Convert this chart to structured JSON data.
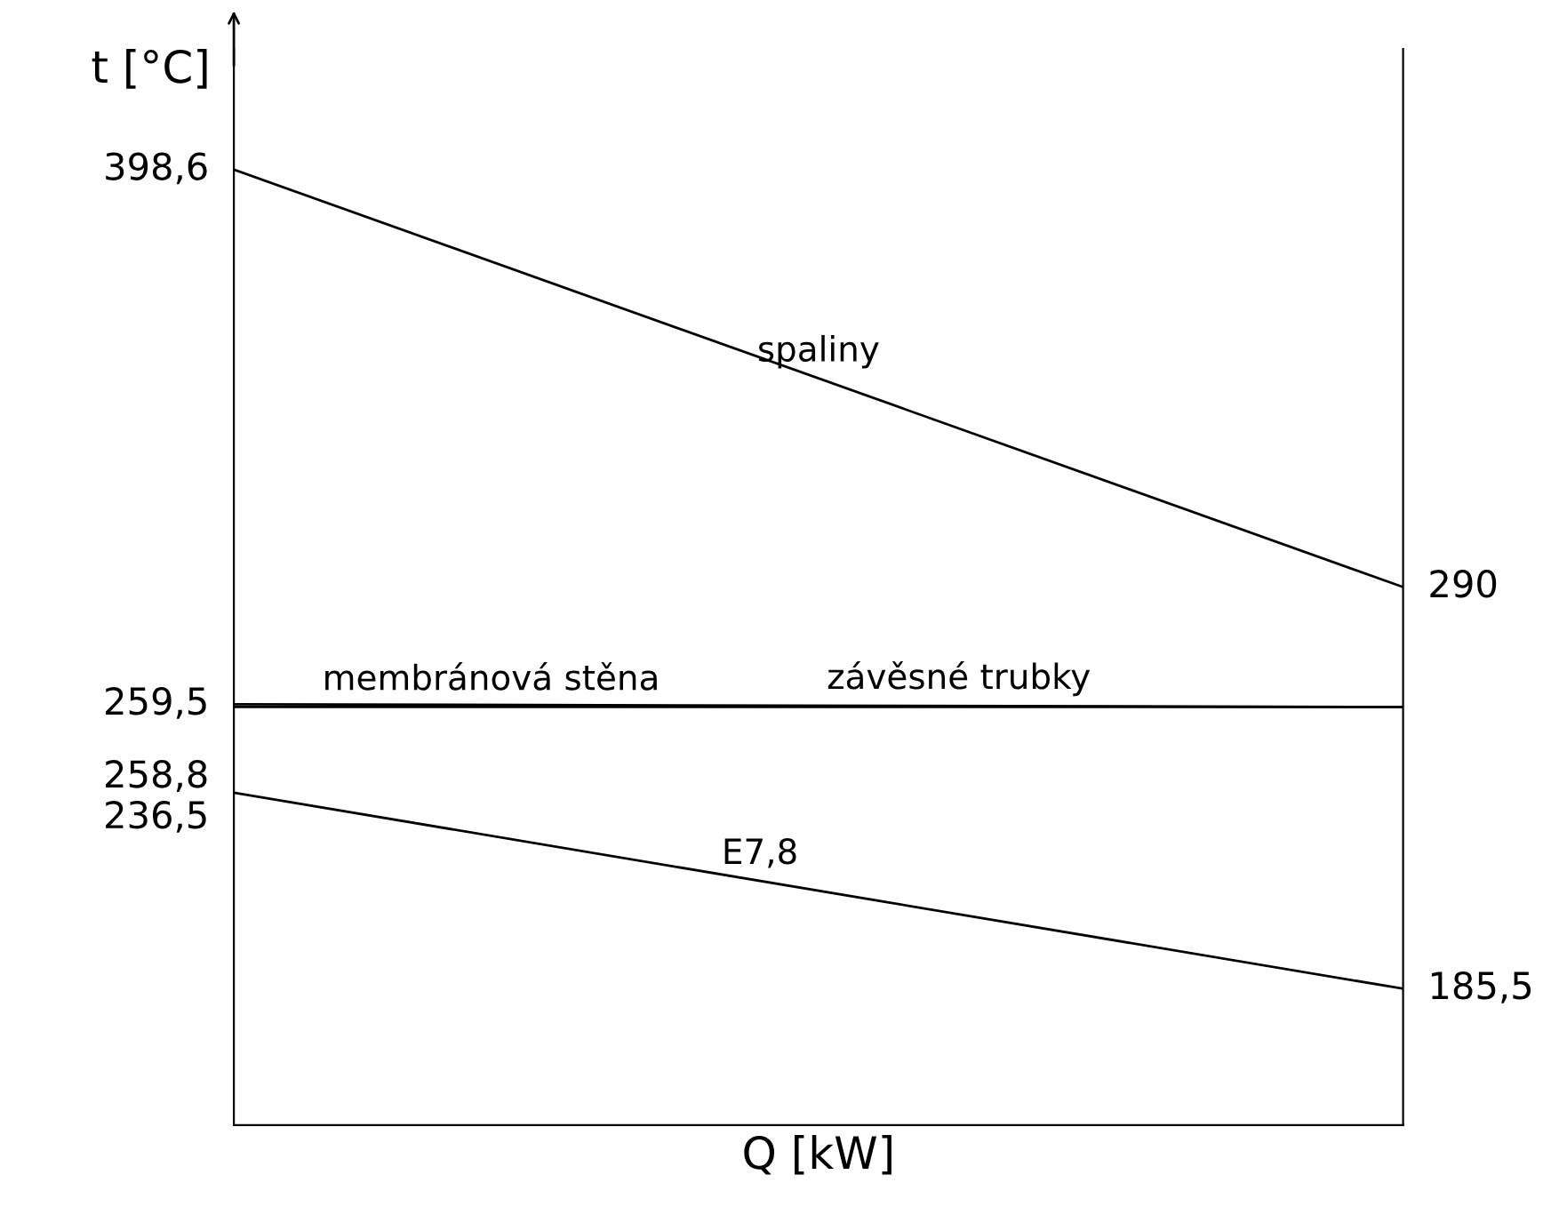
{
  "chart_data": {
    "type": "line",
    "xlabel": "Q [kW]",
    "ylabel": "t [°C]",
    "categories": [
      null,
      null
    ],
    "series": [
      {
        "name": "spaliny",
        "color": "#000000",
        "values": [
          398.6,
          290
        ],
        "value_labels": [
          "398,6",
          "290"
        ]
      },
      {
        "name": "závěsné trubky",
        "color": "#000000",
        "values": [
          259.5,
          258.8
        ],
        "value_labels": [
          "259,5",
          null
        ]
      },
      {
        "name": "membránová stěna",
        "color": "#000000",
        "values": [
          258.8,
          258.8
        ],
        "value_labels": [
          "258,8",
          null
        ]
      },
      {
        "name": "E7,8",
        "color": "#000000",
        "values": [
          236.5,
          185.5
        ],
        "value_labels": [
          "236,5",
          "185,5"
        ]
      }
    ],
    "ylim": [
      150,
      430
    ],
    "marker": "none",
    "line_style": "solid"
  }
}
